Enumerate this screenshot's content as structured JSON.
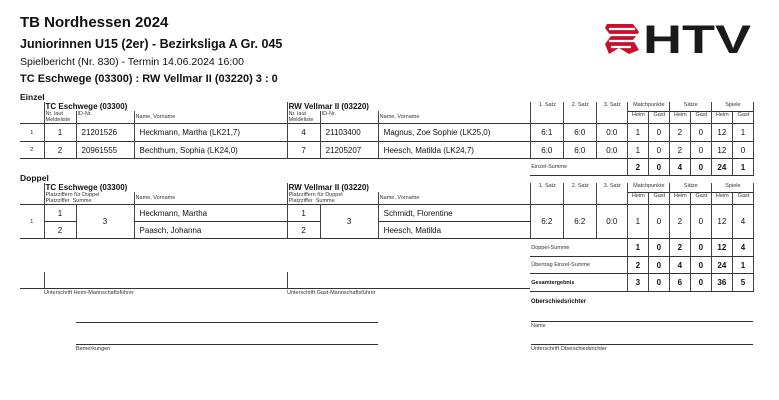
{
  "header": {
    "org": "TB Nordhessen 2024",
    "league": "Juniorinnen U15 (2er) - Bezirksliga A Gr. 045",
    "report": "Spielbericht (Nr. 830) - Termin 14.06.2024 16:00",
    "result": "TC Eschwege (03300) : RW Vellmar II (03220)   3 : 0",
    "logo": "HTV"
  },
  "cols": {
    "nr": "Nr. laut",
    "meldeliste": "Meldeliste",
    "id": "ID-Nr.",
    "name": "Name, Vorname",
    "s1": "1. Satz",
    "s2": "2. Satz",
    "s3": "3. Satz",
    "mp": "Matchpunkte",
    "saetze": "Sätze",
    "spiele": "Spiele",
    "heim": "Heim",
    "gast": "Gast",
    "pz_doppel": "Platzziffern für Doppel",
    "platzziffer": "Platzziffer",
    "summe": "Summe"
  },
  "einzel": {
    "title": "Einzel",
    "home": "TC Eschwege (03300)",
    "guest": "RW Vellmar II (03220)",
    "rows": [
      {
        "no": "1",
        "hnr": "1",
        "hid": "21201526",
        "hname": "Heckmann, Martha (LK21,7)",
        "gnr": "4",
        "gid": "21103400",
        "gname": "Magnus, Zoe Sophie (LK25,0)",
        "s1": "6:1",
        "s2": "6:0",
        "s3": "0:0",
        "mph": "1",
        "mpg": "0",
        "sh": "2",
        "sg": "0",
        "gh": "12",
        "gg": "1"
      },
      {
        "no": "2",
        "hnr": "2",
        "hid": "20961555",
        "hname": "Bechthum, Sophia (LK24,0)",
        "gnr": "7",
        "gid": "21205207",
        "gname": "Heesch, Matilda (LK24,7)",
        "s1": "6:0",
        "s2": "6:0",
        "s3": "0:0",
        "mph": "1",
        "mpg": "0",
        "sh": "2",
        "sg": "0",
        "gh": "12",
        "gg": "0"
      }
    ],
    "sum": {
      "label": "Einzel-Summe",
      "mph": "2",
      "mpg": "0",
      "sh": "4",
      "sg": "0",
      "gh": "24",
      "gg": "1"
    }
  },
  "doppel": {
    "title": "Doppel",
    "home": "TC Eschwege (03300)",
    "guest": "RW Vellmar II (03220)",
    "row": {
      "no": "1",
      "hp1": "1",
      "hp2": "2",
      "hsum": "3",
      "hn1": "Heckmann, Martha",
      "hn2": "Paasch, Johanna",
      "gp1": "1",
      "gp2": "2",
      "gsum": "3",
      "gn1": "Schmidt, Florentine",
      "gn2": "Heesch, Matilda",
      "s1": "6:2",
      "s2": "6:2",
      "s3": "0:0",
      "mph": "1",
      "mpg": "0",
      "sh": "2",
      "sg": "0",
      "gh": "12",
      "gg": "4"
    },
    "sums": [
      {
        "label": "Doppel-Summe",
        "mph": "1",
        "mpg": "0",
        "sh": "2",
        "sg": "0",
        "gh": "12",
        "gg": "4"
      },
      {
        "label": "Übertrag Einzel-Summe",
        "mph": "2",
        "mpg": "0",
        "sh": "4",
        "sg": "0",
        "gh": "24",
        "gg": "1"
      },
      {
        "label": "Gesamtergebnis",
        "mph": "3",
        "mpg": "0",
        "sh": "6",
        "sg": "0",
        "gh": "36",
        "gg": "5"
      }
    ]
  },
  "signatures": {
    "home": "Unterschrift Heim-Mannschaftsführer",
    "guest": "Unterschrift Gast-Mannschaftsführer",
    "remarks": "Bemerkungen",
    "referee_title": "Oberschiedsrichter",
    "name": "Name",
    "referee_sig": "Unterschrift Oberschiedsrichter"
  }
}
